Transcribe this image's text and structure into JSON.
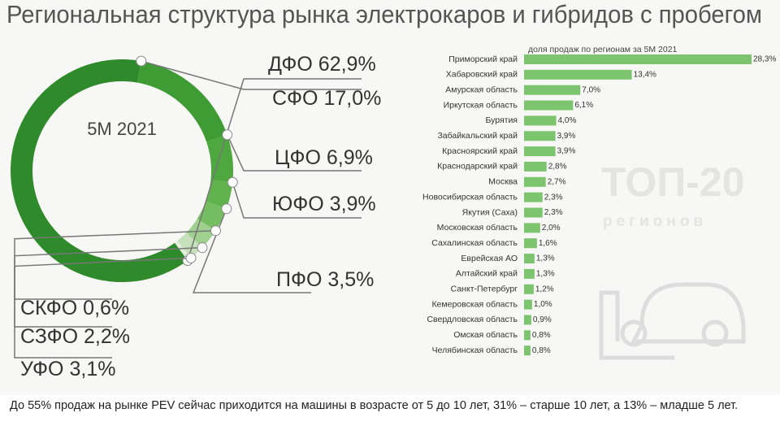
{
  "chart_data": [
    {
      "type": "donut",
      "title": "Региональная структура рынка электрокаров и гибридов с пробегом",
      "center_label": "5М 2021",
      "categories": [
        "ДФО",
        "СФО",
        "ЦФО",
        "ЮФО",
        "ПФО",
        "СКФО",
        "СЗФО",
        "УФО"
      ],
      "values": [
        62.9,
        17.0,
        6.9,
        3.9,
        3.5,
        0.6,
        2.2,
        3.1
      ],
      "value_labels": [
        "62,9%",
        "17,0%",
        "6,9%",
        "3,9%",
        "3,5%",
        "0,6%",
        "2,2%",
        "3,1%"
      ],
      "colors": [
        "#2f8a2c",
        "#3f9c35",
        "#4fa83f",
        "#60b24c",
        "#74bd60",
        "#e3efdd",
        "#c6e0bb",
        "#9fd08f"
      ]
    },
    {
      "type": "hbar",
      "title": "доля продаж по регионам за 5М 2021",
      "color": "#7dc46e",
      "watermark": [
        "ТОП-20",
        "регионов"
      ],
      "categories": [
        "Приморский край",
        "Хабаровский край",
        "Амурская область",
        "Иркутская область",
        "Бурятия",
        "Забайкальский край",
        "Красноярский край",
        "Краснодарский край",
        "Москва",
        "Новосибирская область",
        "Якутия (Саха)",
        "Московская область",
        "Сахалинская область",
        "Еврейская АО",
        "Алтайский край",
        "Санкт-Петербург",
        "Кемеровская область",
        "Свердловская область",
        "Омская область",
        "Челябинская область"
      ],
      "values": [
        28.3,
        13.4,
        7.0,
        6.1,
        4.0,
        3.9,
        3.9,
        2.8,
        2.7,
        2.3,
        2.3,
        2.0,
        1.6,
        1.3,
        1.3,
        1.2,
        1.0,
        0.9,
        0.8,
        0.8
      ],
      "value_labels": [
        "28,3%",
        "13,4%",
        "7,0%",
        "6,1%",
        "4,0%",
        "3,9%",
        "3,9%",
        "2,8%",
        "2,7%",
        "2,3%",
        "2,3%",
        "2,0%",
        "1,6%",
        "1,3%",
        "1,3%",
        "1,2%",
        "1,0%",
        "0,9%",
        "0,8%",
        "0,8%"
      ]
    }
  ],
  "caption": "До 55% продаж на рынке PEV сейчас приходится на машины в возрасте от 5 до 10 лет, 31% – старше 10 лет, а 13% – младше 5 лет."
}
